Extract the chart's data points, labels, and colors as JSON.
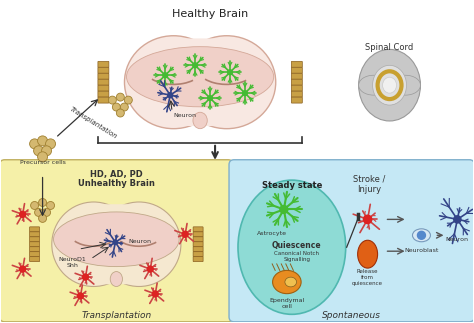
{
  "title": "Healthy Brain",
  "bg_color": "#ffffff",
  "top_brain_color": "#f8e8e2",
  "top_brain_inner_color": "#f0d0c8",
  "spinal_cord_label": "Spinal Cord",
  "transplantation_label": "Transplantation",
  "precursor_label": "Precursor cells",
  "left_box_bg": "#f5f0a8",
  "left_box_label1": "HD, AD, PD",
  "left_box_label2": "Unhealthy Brain",
  "left_box_footer": "Transplantation",
  "left_brain_color": "#f5e8d0",
  "right_box_bg": "#c5e8f5",
  "steady_state_label": "Steady state",
  "steady_ellipse_color": "#8edbd5",
  "astrocyte_label": "Astrocyte",
  "quiescence_label": "Quiescence",
  "canonical_label": "Canonical Notch\nSignalling",
  "ependymal_label": "Ependymal\ncell",
  "stroke_label": "Stroke /\nInjury",
  "release_label": "Release\nfrom\nquiescence",
  "neuroblast_label": "Neuroblast",
  "neuron_label": "Neuron",
  "spontaneous_label": "Spontaneous",
  "neuron_label_top": "Neuron",
  "astrocyte_color": "#44bb33",
  "ependymal_color": "#e88c20",
  "red_cell_color": "#cc4444",
  "blue_neuron_color": "#334488",
  "neuroblast_color": "#aaccee",
  "striatum_color": "#c8a045",
  "brain_edge_color": "#d4a898",
  "spinal_gray": "#c8c8c8",
  "spinal_inner": "#e0e0e0",
  "spinal_gold": "#c8a030"
}
